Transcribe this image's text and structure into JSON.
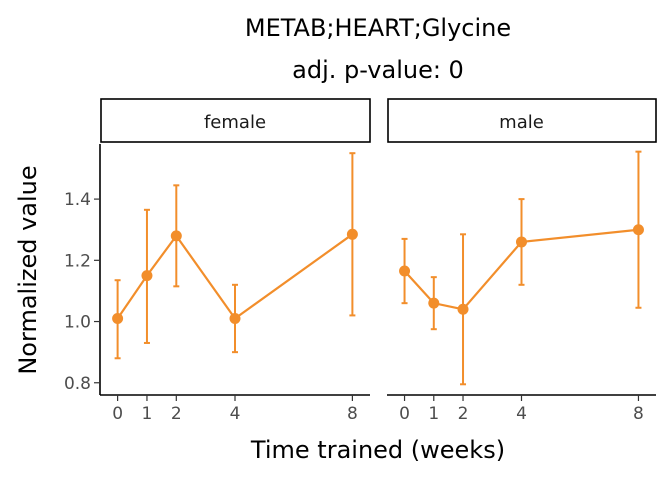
{
  "chart_data": {
    "type": "line",
    "title": "METAB;HEART;Glycine",
    "subtitle": "adj. p-value: 0",
    "xlabel": "Time trained (weeks)",
    "ylabel": "Normalized value",
    "x_ticks": [
      0,
      1,
      2,
      4,
      8
    ],
    "y_ticks": [
      0.8,
      1.0,
      1.2,
      1.4
    ],
    "y_tick_labels": [
      "0.8",
      "1.0",
      "1.2",
      "1.4"
    ],
    "ylim": [
      0.76,
      1.58
    ],
    "xlim": [
      -0.6,
      8.6
    ],
    "grid": false,
    "series_color": "#F28E2B",
    "panels": [
      {
        "label": "female",
        "points": [
          {
            "x": 0,
            "y": 1.01,
            "lower": 0.88,
            "upper": 1.135
          },
          {
            "x": 1,
            "y": 1.15,
            "lower": 0.93,
            "upper": 1.365
          },
          {
            "x": 2,
            "y": 1.28,
            "lower": 1.115,
            "upper": 1.445
          },
          {
            "x": 4,
            "y": 1.01,
            "lower": 0.9,
            "upper": 1.12
          },
          {
            "x": 8,
            "y": 1.285,
            "lower": 1.02,
            "upper": 1.55
          }
        ]
      },
      {
        "label": "male",
        "points": [
          {
            "x": 0,
            "y": 1.165,
            "lower": 1.06,
            "upper": 1.27
          },
          {
            "x": 1,
            "y": 1.06,
            "lower": 0.975,
            "upper": 1.145
          },
          {
            "x": 2,
            "y": 1.04,
            "lower": 0.795,
            "upper": 1.285
          },
          {
            "x": 4,
            "y": 1.26,
            "lower": 1.12,
            "upper": 1.4
          },
          {
            "x": 8,
            "y": 1.3,
            "lower": 1.045,
            "upper": 1.555
          }
        ]
      }
    ]
  }
}
